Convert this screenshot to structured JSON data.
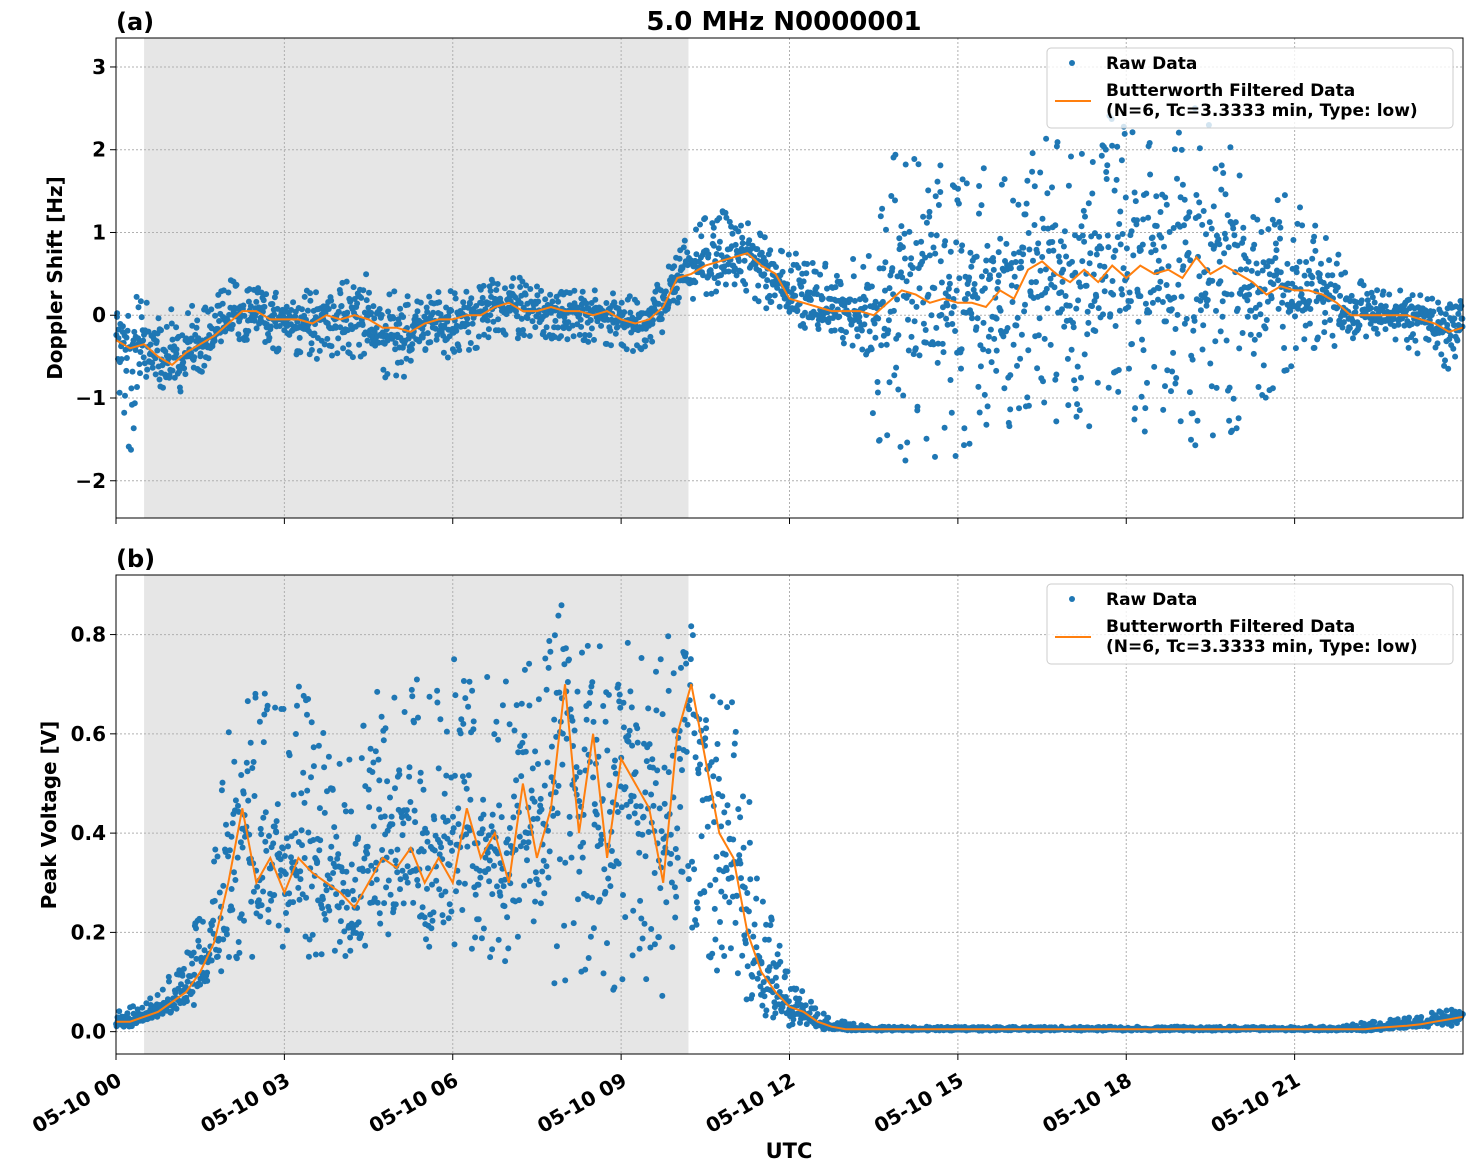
{
  "figure_title": "5.0 MHz N0000001",
  "colors": {
    "raw": "#1f77b4",
    "filtered": "#ff7f0e",
    "shade": "#e6e6e6",
    "grid": "#b0b0b0"
  },
  "shared_x": {
    "xlabel": "UTC",
    "tick_labels": [
      "05-10 00",
      "05-10 03",
      "05-10 06",
      "05-10 09",
      "05-10 12",
      "05-10 15",
      "05-10 18",
      "05-10 21"
    ],
    "tick_hours": [
      0,
      3,
      6,
      9,
      12,
      15,
      18,
      21
    ],
    "xlim_hours": [
      0,
      24
    ],
    "shaded_interval_hours": [
      0.5,
      10.2
    ]
  },
  "chart_data": [
    {
      "type": "scatter",
      "panel_label": "(a)",
      "ylabel": "Doppler Shift [Hz]",
      "ylim": [
        -2.45,
        3.35
      ],
      "yticks": [
        -2,
        -1,
        0,
        1,
        2,
        3
      ],
      "ytick_labels": [
        "−2",
        "−1",
        "0",
        "1",
        "2",
        "3"
      ],
      "grid": true,
      "legend_position": "top-right",
      "legend": [
        "Raw Data",
        "Butterworth Filtered Data\n(N=6, Tc=3.3333 min, Type: low)"
      ],
      "series": [
        {
          "name": "Butterworth Filtered Data",
          "kind": "line",
          "x_hours": [
            0,
            0.25,
            0.5,
            0.75,
            1,
            1.25,
            1.5,
            1.75,
            2,
            2.25,
            2.5,
            2.75,
            3,
            3.25,
            3.5,
            3.75,
            4,
            4.25,
            4.5,
            4.75,
            5,
            5.25,
            5.5,
            5.75,
            6,
            6.25,
            6.5,
            6.75,
            7,
            7.25,
            7.5,
            7.75,
            8,
            8.25,
            8.5,
            8.75,
            9,
            9.25,
            9.5,
            9.75,
            10,
            10.25,
            10.5,
            10.75,
            11,
            11.25,
            11.5,
            11.75,
            12,
            12.25,
            12.5,
            12.75,
            13,
            13.25,
            13.5,
            13.75,
            14,
            14.25,
            14.5,
            14.75,
            15,
            15.25,
            15.5,
            15.75,
            16,
            16.25,
            16.5,
            16.75,
            17,
            17.25,
            17.5,
            17.75,
            18,
            18.25,
            18.5,
            18.75,
            19,
            19.25,
            19.5,
            19.75,
            20,
            20.25,
            20.5,
            20.75,
            21,
            21.25,
            21.5,
            21.75,
            22,
            22.25,
            22.5,
            22.75,
            23,
            23.25,
            23.5,
            23.75,
            24
          ],
          "y": [
            -0.3,
            -0.4,
            -0.35,
            -0.5,
            -0.6,
            -0.45,
            -0.35,
            -0.25,
            -0.1,
            0.05,
            0.05,
            -0.05,
            -0.05,
            -0.05,
            -0.1,
            0,
            -0.05,
            0,
            -0.05,
            -0.15,
            -0.15,
            -0.2,
            -0.1,
            -0.05,
            -0.05,
            0,
            0,
            0.1,
            0.15,
            0.05,
            0.05,
            0.1,
            0.05,
            0.05,
            0,
            0.05,
            -0.05,
            -0.1,
            -0.05,
            0.1,
            0.45,
            0.5,
            0.6,
            0.65,
            0.7,
            0.75,
            0.6,
            0.5,
            0.2,
            0.15,
            0.1,
            0.05,
            0.05,
            0.05,
            0,
            0.15,
            0.3,
            0.25,
            0.15,
            0.2,
            0.15,
            0.15,
            0.1,
            0.3,
            0.2,
            0.55,
            0.65,
            0.5,
            0.4,
            0.55,
            0.4,
            0.6,
            0.45,
            0.6,
            0.5,
            0.55,
            0.45,
            0.7,
            0.5,
            0.6,
            0.5,
            0.4,
            0.25,
            0.35,
            0.3,
            0.3,
            0.25,
            0.15,
            0,
            0,
            0,
            0,
            0,
            -0.05,
            -0.1,
            -0.2,
            -0.15
          ]
        },
        {
          "name": "Raw Data",
          "kind": "scatter",
          "x_hours": [
            0,
            0.25,
            0.5,
            0.75,
            1,
            1.25,
            1.5,
            1.75,
            2,
            2.25,
            2.5,
            2.75,
            3,
            3.25,
            3.5,
            3.75,
            4,
            4.25,
            4.5,
            4.75,
            5,
            5.25,
            5.5,
            5.75,
            6,
            6.25,
            6.5,
            6.75,
            7,
            7.25,
            7.5,
            7.75,
            8,
            8.25,
            8.5,
            8.75,
            9,
            9.25,
            9.5,
            9.75,
            10,
            10.25,
            10.5,
            10.75,
            11,
            11.25,
            11.5,
            11.75,
            12,
            12.25,
            12.5,
            12.75,
            13,
            13.25,
            13.5,
            13.75,
            14,
            14.25,
            14.5,
            14.75,
            15,
            15.25,
            15.5,
            15.75,
            16,
            16.25,
            16.5,
            16.75,
            17,
            17.25,
            17.5,
            17.75,
            18,
            18.25,
            18.5,
            18.75,
            19,
            19.25,
            19.5,
            19.75,
            20,
            20.25,
            20.5,
            20.75,
            21,
            21.25,
            21.5,
            21.75,
            22,
            22.25,
            22.5,
            22.75,
            23,
            23.25,
            23.5,
            23.75,
            24
          ],
          "y_low": [
            -0.9,
            -1.7,
            -1,
            -1.1,
            -1.1,
            -0.9,
            -0.7,
            -0.6,
            -0.35,
            -0.3,
            -0.35,
            -0.45,
            -0.5,
            -0.5,
            -0.55,
            -0.5,
            -0.5,
            -0.55,
            -0.6,
            -0.8,
            -0.8,
            -0.7,
            -0.6,
            -0.5,
            -0.55,
            -0.5,
            -0.35,
            -0.3,
            -0.25,
            -0.3,
            -0.3,
            -0.3,
            -0.3,
            -0.3,
            -0.35,
            -0.35,
            -0.4,
            -0.45,
            -0.4,
            -0.3,
            0,
            0.15,
            0.2,
            0.2,
            0.3,
            0.25,
            0.1,
            0.05,
            -0.15,
            -0.2,
            -0.25,
            -0.3,
            -0.35,
            -0.4,
            -1.5,
            -1.8,
            -2.1,
            -1.9,
            -1.7,
            -1.8,
            -1.9,
            -1.6,
            -1.5,
            -1.5,
            -1.3,
            -1.1,
            -1.2,
            -1.3,
            -1.2,
            -1.4,
            -1.3,
            -1.6,
            -1.4,
            -1.5,
            -1.3,
            -1.3,
            -1.4,
            -1.9,
            -1.7,
            -1.5,
            -1.5,
            -1.2,
            -1,
            -0.8,
            -0.7,
            -0.5,
            -0.45,
            -0.4,
            -0.35,
            -0.3,
            -0.3,
            -0.3,
            -0.4,
            -0.5,
            -0.6,
            -0.7,
            -0.65
          ],
          "y_high": [
            0.45,
            0.25,
            0.2,
            0.1,
            0.1,
            0.15,
            0.15,
            0.2,
            0.45,
            0.45,
            0.35,
            0.3,
            0.3,
            0.3,
            0.35,
            0.35,
            0.4,
            0.5,
            0.5,
            0.45,
            0.3,
            0.3,
            0.3,
            0.3,
            0.3,
            0.3,
            0.35,
            0.45,
            0.5,
            0.45,
            0.35,
            0.3,
            0.3,
            0.3,
            0.3,
            0.3,
            0.25,
            0.25,
            0.25,
            0.5,
            0.8,
            1,
            1.2,
            1.3,
            1.25,
            1.15,
            1.05,
            0.9,
            0.8,
            0.7,
            0.65,
            0.6,
            0.55,
            0.8,
            1.5,
            1.7,
            2.4,
            2.5,
            2.1,
            1.9,
            1.8,
            1.7,
            1.8,
            1.7,
            1.6,
            1.9,
            2.2,
            2.2,
            2,
            2.4,
            2.3,
            2.5,
            2.3,
            2.4,
            2.2,
            2.3,
            2.2,
            2.6,
            2.3,
            2.2,
            2,
            1.6,
            1.4,
            1.7,
            1.5,
            1.2,
            1,
            0.8,
            0.6,
            0.4,
            0.35,
            0.3,
            0.3,
            0.25,
            0.2,
            0.15,
            0.2
          ]
        }
      ]
    },
    {
      "type": "scatter",
      "panel_label": "(b)",
      "ylabel": "Peak Voltage [V]",
      "ylim": [
        -0.045,
        0.92
      ],
      "yticks": [
        0,
        0.2,
        0.4,
        0.6,
        0.8
      ],
      "ytick_labels": [
        "0.0",
        "0.2",
        "0.4",
        "0.6",
        "0.8"
      ],
      "grid": true,
      "legend_position": "top-right",
      "legend": [
        "Raw Data",
        "Butterworth Filtered Data\n(N=6, Tc=3.3333 min, Type: low)"
      ],
      "series": [
        {
          "name": "Butterworth Filtered Data",
          "kind": "line",
          "x_hours": [
            0,
            0.25,
            0.5,
            0.75,
            1,
            1.25,
            1.5,
            1.75,
            2,
            2.25,
            2.5,
            2.75,
            3,
            3.25,
            3.5,
            3.75,
            4,
            4.25,
            4.5,
            4.75,
            5,
            5.25,
            5.5,
            5.75,
            6,
            6.25,
            6.5,
            6.75,
            7,
            7.25,
            7.5,
            7.75,
            8,
            8.25,
            8.5,
            8.75,
            9,
            9.25,
            9.5,
            9.75,
            10,
            10.25,
            10.5,
            10.75,
            11,
            11.25,
            11.5,
            11.75,
            12,
            12.25,
            12.5,
            12.75,
            13,
            13.25,
            13.5,
            13.75,
            14,
            14.25,
            14.5,
            14.75,
            15,
            15.25,
            15.5,
            15.75,
            16,
            16.25,
            16.5,
            16.75,
            17,
            17.25,
            17.5,
            17.75,
            18,
            18.25,
            18.5,
            18.75,
            19,
            19.25,
            19.5,
            19.75,
            20,
            20.25,
            20.5,
            20.75,
            21,
            21.25,
            21.5,
            21.75,
            22,
            22.25,
            22.5,
            22.75,
            23,
            23.25,
            23.5,
            23.75,
            24
          ],
          "y": [
            0.02,
            0.02,
            0.03,
            0.04,
            0.06,
            0.08,
            0.12,
            0.18,
            0.3,
            0.45,
            0.3,
            0.35,
            0.28,
            0.35,
            0.32,
            0.3,
            0.28,
            0.25,
            0.3,
            0.35,
            0.33,
            0.37,
            0.3,
            0.35,
            0.3,
            0.45,
            0.35,
            0.4,
            0.3,
            0.5,
            0.35,
            0.45,
            0.7,
            0.4,
            0.6,
            0.35,
            0.55,
            0.5,
            0.45,
            0.3,
            0.6,
            0.7,
            0.55,
            0.4,
            0.35,
            0.2,
            0.12,
            0.08,
            0.05,
            0.04,
            0.02,
            0.01,
            0.005,
            0.005,
            0.005,
            0.005,
            0.005,
            0.005,
            0.005,
            0.005,
            0.005,
            0.005,
            0.005,
            0.005,
            0.005,
            0.005,
            0.005,
            0.005,
            0.005,
            0.005,
            0.005,
            0.005,
            0.005,
            0.005,
            0.005,
            0.005,
            0.005,
            0.005,
            0.005,
            0.005,
            0.005,
            0.005,
            0.005,
            0.005,
            0.005,
            0.005,
            0.005,
            0.005,
            0.005,
            0.005,
            0.008,
            0.01,
            0.012,
            0.015,
            0.02,
            0.025,
            0.03
          ]
        },
        {
          "name": "Raw Data",
          "kind": "scatter",
          "x_hours": [
            0,
            0.25,
            0.5,
            0.75,
            1,
            1.25,
            1.5,
            1.75,
            2,
            2.25,
            2.5,
            2.75,
            3,
            3.25,
            3.5,
            3.75,
            4,
            4.25,
            4.5,
            4.75,
            5,
            5.25,
            5.5,
            5.75,
            6,
            6.25,
            6.5,
            6.75,
            7,
            7.25,
            7.5,
            7.75,
            8,
            8.25,
            8.5,
            8.75,
            9,
            9.25,
            9.5,
            9.75,
            10,
            10.25,
            10.5,
            10.75,
            11,
            11.25,
            11.5,
            11.75,
            12,
            12.25,
            12.5,
            12.75,
            13,
            13.25,
            13.5,
            13.75,
            14,
            14.25,
            14.5,
            14.75,
            15,
            15.25,
            15.5,
            15.75,
            16,
            16.25,
            16.5,
            16.75,
            17,
            17.25,
            17.5,
            17.75,
            18,
            18.25,
            18.5,
            18.75,
            19,
            19.25,
            19.5,
            19.75,
            20,
            20.25,
            20.5,
            20.75,
            21,
            21.25,
            21.5,
            21.75,
            22,
            22.25,
            22.5,
            22.75,
            23,
            23.25,
            23.5,
            23.75,
            24
          ],
          "y_low": [
            0.01,
            0.01,
            0.015,
            0.02,
            0.03,
            0.04,
            0.06,
            0.08,
            0.12,
            0.15,
            0.15,
            0.15,
            0.15,
            0.15,
            0.14,
            0.15,
            0.15,
            0.15,
            0.15,
            0.15,
            0.15,
            0.15,
            0.15,
            0.14,
            0.15,
            0.15,
            0.12,
            0.12,
            0.12,
            0.1,
            0.08,
            0.08,
            0.1,
            0.08,
            0.08,
            0.08,
            0.08,
            0.06,
            0.05,
            0.03,
            0.15,
            0.2,
            0.15,
            0.1,
            0.08,
            0.05,
            0.03,
            0.02,
            0.01,
            0.005,
            0.003,
            0.002,
            0.002,
            0.002,
            0.002,
            0.002,
            0.002,
            0.002,
            0.002,
            0.002,
            0.002,
            0.002,
            0.002,
            0.002,
            0.002,
            0.002,
            0.002,
            0.002,
            0.002,
            0.002,
            0.002,
            0.002,
            0.002,
            0.002,
            0.002,
            0.002,
            0.002,
            0.002,
            0.002,
            0.002,
            0.002,
            0.002,
            0.002,
            0.002,
            0.002,
            0.002,
            0.002,
            0.002,
            0.002,
            0.002,
            0.003,
            0.004,
            0.005,
            0.006,
            0.008,
            0.01,
            0.015
          ],
          "y_high": [
            0.04,
            0.05,
            0.06,
            0.08,
            0.12,
            0.16,
            0.25,
            0.4,
            0.75,
            0.72,
            0.7,
            0.72,
            0.65,
            0.72,
            0.65,
            0.6,
            0.55,
            0.55,
            0.68,
            0.75,
            0.7,
            0.78,
            0.72,
            0.78,
            0.75,
            0.8,
            0.78,
            0.75,
            0.7,
            0.82,
            0.75,
            0.82,
            0.88,
            0.85,
            0.86,
            0.8,
            0.84,
            0.8,
            0.75,
            0.8,
            0.85,
            0.85,
            0.8,
            0.75,
            0.7,
            0.5,
            0.3,
            0.2,
            0.12,
            0.08,
            0.05,
            0.03,
            0.02,
            0.015,
            0.01,
            0.01,
            0.01,
            0.01,
            0.01,
            0.01,
            0.01,
            0.01,
            0.01,
            0.01,
            0.01,
            0.01,
            0.01,
            0.01,
            0.01,
            0.01,
            0.01,
            0.01,
            0.01,
            0.01,
            0.01,
            0.01,
            0.01,
            0.01,
            0.01,
            0.01,
            0.01,
            0.01,
            0.01,
            0.01,
            0.01,
            0.01,
            0.01,
            0.01,
            0.015,
            0.02,
            0.02,
            0.025,
            0.03,
            0.035,
            0.04,
            0.045,
            0.05
          ]
        }
      ]
    }
  ]
}
